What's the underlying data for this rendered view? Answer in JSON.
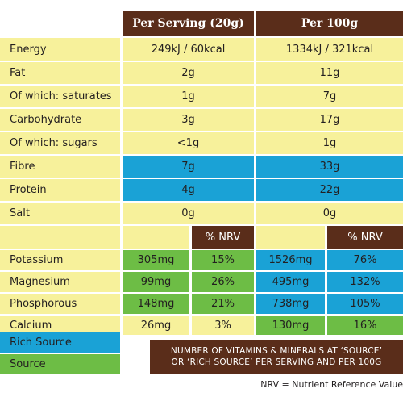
{
  "headers": {
    "per_serving": "Per Serving (20g)",
    "per_100g": "Per 100g"
  },
  "nrv_header": "% NRV",
  "rows": [
    {
      "label": "Energy",
      "serving": "249kJ / 60kcal",
      "per100": "1334kJ / 321kcal"
    },
    {
      "label": "Fat",
      "serving": "2g",
      "per100": "11g"
    },
    {
      "label": "Of which: saturates",
      "serving": "1g",
      "per100": "7g"
    },
    {
      "label": "Carbohydrate",
      "serving": "3g",
      "per100": "17g"
    },
    {
      "label": "Of which: sugars",
      "serving": "<1g",
      "per100": "1g"
    },
    {
      "label": "Fibre",
      "serving": "7g",
      "per100": "33g"
    },
    {
      "label": "Protein",
      "serving": "4g",
      "per100": "22g"
    },
    {
      "label": "Salt",
      "serving": "0g",
      "per100": "0g"
    }
  ],
  "minerals": [
    {
      "label": "Potassium",
      "serving": "305mg",
      "serving_nrv": "15%",
      "per100": "1526mg",
      "per100_nrv": "76%"
    },
    {
      "label": "Magnesium",
      "serving": "99mg",
      "serving_nrv": "26%",
      "per100": "495mg",
      "per100_nrv": "132%"
    },
    {
      "label": "Phosphorous",
      "serving": "148mg",
      "serving_nrv": "21%",
      "per100": "738mg",
      "per100_nrv": "105%"
    },
    {
      "label": "Calcium",
      "serving": "26mg",
      "serving_nrv": "3%",
      "per100": "130mg",
      "per100_nrv": "16%"
    }
  ],
  "legend": {
    "rich_source": "Rich Source",
    "source": "Source"
  },
  "note": {
    "line1": "NUMBER OF VITAMINS & MINERALS AT ‘SOURCE’",
    "line2": "OR ‘RICH SOURCE’ PER SERVING AND PER 100G"
  },
  "footnote": "NRV = Nutrient Reference Value",
  "colors": {
    "cream": "#f7f19b",
    "blue": "#1aa2d6",
    "green": "#6dbd45",
    "brown": "#5a2d1a"
  }
}
